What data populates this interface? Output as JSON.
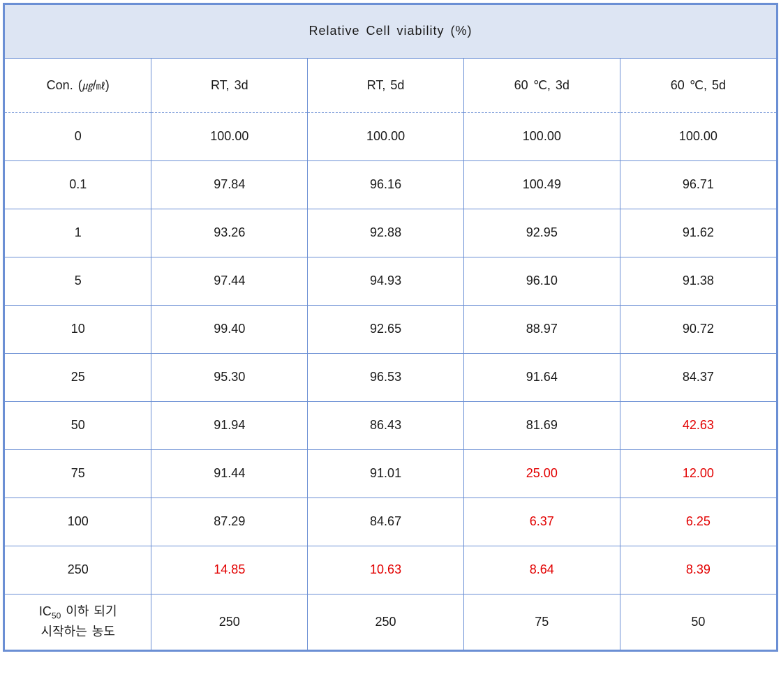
{
  "table": {
    "title": "Relative Cell viability (%)",
    "header_col0_prefix": "Con. (",
    "header_col0_unit1": "㎍",
    "header_col0_slash": "/",
    "header_col0_unit2": "㎖",
    "header_col0_suffix": ")",
    "columns": [
      "RT, 3d",
      "RT, 5d",
      "60 ℃, 3d",
      "60 ℃, 5d"
    ],
    "rows": [
      {
        "conc": "0",
        "vals": [
          {
            "v": "100.00",
            "r": false
          },
          {
            "v": "100.00",
            "r": false
          },
          {
            "v": "100.00",
            "r": false
          },
          {
            "v": "100.00",
            "r": false
          }
        ]
      },
      {
        "conc": "0.1",
        "vals": [
          {
            "v": "97.84",
            "r": false
          },
          {
            "v": "96.16",
            "r": false
          },
          {
            "v": "100.49",
            "r": false
          },
          {
            "v": "96.71",
            "r": false
          }
        ]
      },
      {
        "conc": "1",
        "vals": [
          {
            "v": "93.26",
            "r": false
          },
          {
            "v": "92.88",
            "r": false
          },
          {
            "v": "92.95",
            "r": false
          },
          {
            "v": "91.62",
            "r": false
          }
        ]
      },
      {
        "conc": "5",
        "vals": [
          {
            "v": "97.44",
            "r": false
          },
          {
            "v": "94.93",
            "r": false
          },
          {
            "v": "96.10",
            "r": false
          },
          {
            "v": "91.38",
            "r": false
          }
        ]
      },
      {
        "conc": "10",
        "vals": [
          {
            "v": "99.40",
            "r": false
          },
          {
            "v": "92.65",
            "r": false
          },
          {
            "v": "88.97",
            "r": false
          },
          {
            "v": "90.72",
            "r": false
          }
        ]
      },
      {
        "conc": "25",
        "vals": [
          {
            "v": "95.30",
            "r": false
          },
          {
            "v": "96.53",
            "r": false
          },
          {
            "v": "91.64",
            "r": false
          },
          {
            "v": "84.37",
            "r": false
          }
        ]
      },
      {
        "conc": "50",
        "vals": [
          {
            "v": "91.94",
            "r": false
          },
          {
            "v": "86.43",
            "r": false
          },
          {
            "v": "81.69",
            "r": false
          },
          {
            "v": "42.63",
            "r": true
          }
        ]
      },
      {
        "conc": "75",
        "vals": [
          {
            "v": "91.44",
            "r": false
          },
          {
            "v": "91.01",
            "r": false
          },
          {
            "v": "25.00",
            "r": true
          },
          {
            "v": "12.00",
            "r": true
          }
        ]
      },
      {
        "conc": "100",
        "vals": [
          {
            "v": "87.29",
            "r": false
          },
          {
            "v": "84.67",
            "r": false
          },
          {
            "v": "6.37",
            "r": true
          },
          {
            "v": "6.25",
            "r": true
          }
        ]
      },
      {
        "conc": "250",
        "vals": [
          {
            "v": "14.85",
            "r": true
          },
          {
            "v": "10.63",
            "r": true
          },
          {
            "v": "8.64",
            "r": true
          },
          {
            "v": "8.39",
            "r": true
          }
        ]
      }
    ],
    "footer": {
      "label_pre": "IC",
      "label_sub": "50",
      "label_post": " 이하 되기",
      "label_line2": "시작하는 농도",
      "vals": [
        "250",
        "250",
        "75",
        "50"
      ]
    },
    "colors": {
      "border": "#6b8fd4",
      "header_bg": "#dde5f3",
      "text": "#1a1a1a",
      "highlight": "#e20000",
      "background": "#ffffff"
    },
    "col_widths_pct": [
      19,
      20.25,
      20.25,
      20.25,
      20.25
    ]
  }
}
